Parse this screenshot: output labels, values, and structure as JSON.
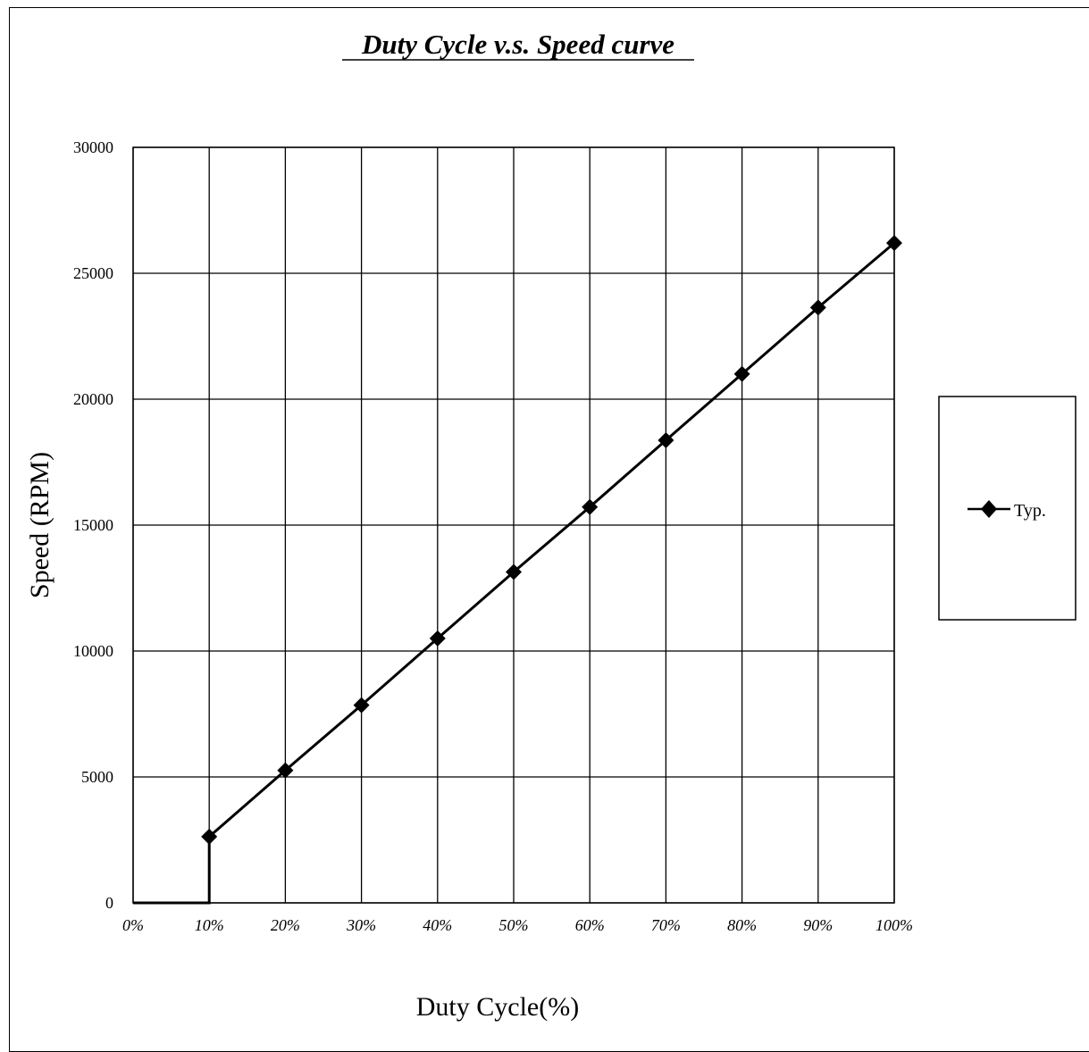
{
  "chart_data": {
    "type": "line",
    "title": "Duty Cycle v.s. Speed curve",
    "xlabel": "Duty Cycle(%)",
    "ylabel": "Speed (RPM)",
    "categories": [
      "0%",
      "10%",
      "20%",
      "30%",
      "40%",
      "50%",
      "60%",
      "70%",
      "80%",
      "90%",
      "100%"
    ],
    "x": [
      0,
      10,
      20,
      30,
      40,
      50,
      60,
      70,
      80,
      90,
      100
    ],
    "xlim": [
      0,
      100
    ],
    "ylim": [
      0,
      30000
    ],
    "yticks": [
      0,
      5000,
      10000,
      15000,
      20000,
      25000,
      30000
    ],
    "y_tick_labels": [
      "0",
      "5000",
      "10000",
      "15000",
      "20000",
      "25000",
      "30000"
    ],
    "grid": true,
    "legend_position": "right",
    "series": [
      {
        "name": "Typ.",
        "color": "#000000",
        "marker": "diamond",
        "markers_x": [
          10,
          20,
          30,
          40,
          50,
          60,
          70,
          80,
          90,
          100
        ],
        "markers_y": [
          2630,
          5260,
          7850,
          10500,
          13140,
          15720,
          18370,
          21000,
          23640,
          26200
        ],
        "line_x": [
          0,
          10,
          10,
          20,
          30,
          40,
          50,
          60,
          70,
          80,
          90,
          100
        ],
        "line_y": [
          0,
          0,
          2630,
          5260,
          7850,
          10500,
          13140,
          15720,
          18370,
          21000,
          23640,
          26200
        ]
      }
    ]
  }
}
